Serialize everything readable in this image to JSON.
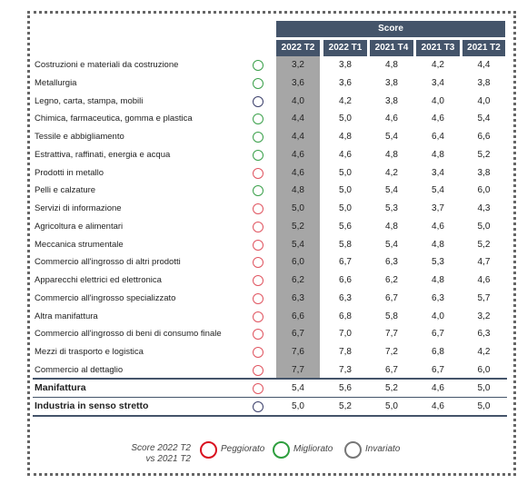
{
  "table": {
    "super_header": "Score",
    "columns": [
      "2022 T2",
      "2022 T1",
      "2021 T4",
      "2021 T3",
      "2021 T2"
    ],
    "rows": [
      {
        "label": "Costruzioni e materiali da costruzione",
        "status": "Migliorato",
        "cells": [
          "3,2",
          "3,8",
          "4,8",
          "4,2",
          "4,4"
        ]
      },
      {
        "label": "Metallurgia",
        "status": "Migliorato",
        "cells": [
          "3,6",
          "3,6",
          "3,8",
          "3,4",
          "3,8"
        ]
      },
      {
        "label": "Legno, carta, stampa, mobili",
        "status": "Invariato",
        "cells": [
          "4,0",
          "4,2",
          "3,8",
          "4,0",
          "4,0"
        ]
      },
      {
        "label": "Chimica, farmaceutica, gomma e plastica",
        "status": "Migliorato",
        "cells": [
          "4,4",
          "5,0",
          "4,6",
          "4,6",
          "5,4"
        ]
      },
      {
        "label": "Tessile e abbigliamento",
        "status": "Migliorato",
        "cells": [
          "4,4",
          "4,8",
          "5,4",
          "6,4",
          "6,6"
        ]
      },
      {
        "label": "Estrattiva, raffinati, energia e acqua",
        "status": "Migliorato",
        "cells": [
          "4,6",
          "4,6",
          "4,8",
          "4,8",
          "5,2"
        ]
      },
      {
        "label": "Prodotti in metallo",
        "status": "Peggiorato",
        "cells": [
          "4,6",
          "5,0",
          "4,2",
          "3,4",
          "3,8"
        ]
      },
      {
        "label": "Pelli e calzature",
        "status": "Migliorato",
        "cells": [
          "4,8",
          "5,0",
          "5,4",
          "5,4",
          "6,0"
        ]
      },
      {
        "label": "Servizi di informazione",
        "status": "Peggiorato",
        "cells": [
          "5,0",
          "5,0",
          "5,3",
          "3,7",
          "4,3"
        ]
      },
      {
        "label": "Agricoltura e alimentari",
        "status": "Peggiorato",
        "cells": [
          "5,2",
          "5,6",
          "4,8",
          "4,6",
          "5,0"
        ]
      },
      {
        "label": "Meccanica strumentale",
        "status": "Peggiorato",
        "cells": [
          "5,4",
          "5,8",
          "5,4",
          "4,8",
          "5,2"
        ]
      },
      {
        "label": "Commercio all'ingrosso di altri prodotti",
        "status": "Peggiorato",
        "cells": [
          "6,0",
          "6,7",
          "6,3",
          "5,3",
          "4,7"
        ]
      },
      {
        "label": "Apparecchi elettrici ed elettronica",
        "status": "Peggiorato",
        "cells": [
          "6,2",
          "6,6",
          "6,2",
          "4,8",
          "4,6"
        ]
      },
      {
        "label": "Commercio all'ingrosso specializzato",
        "status": "Peggiorato",
        "cells": [
          "6,3",
          "6,3",
          "6,7",
          "6,3",
          "5,7"
        ]
      },
      {
        "label": "Altra manifattura",
        "status": "Peggiorato",
        "cells": [
          "6,6",
          "6,8",
          "5,8",
          "4,0",
          "3,2"
        ]
      },
      {
        "label": "Commercio all'ingrosso di beni di consumo finale",
        "status": "Peggiorato",
        "cells": [
          "6,7",
          "7,0",
          "7,7",
          "6,7",
          "6,3"
        ]
      },
      {
        "label": "Mezzi di trasporto e logistica",
        "status": "Peggiorato",
        "cells": [
          "7,6",
          "7,8",
          "7,2",
          "6,8",
          "4,2"
        ]
      },
      {
        "label": "Commercio al dettaglio",
        "status": "Peggiorato",
        "cells": [
          "7,7",
          "7,3",
          "6,7",
          "6,7",
          "6,0"
        ]
      }
    ],
    "summary_rows": [
      {
        "label": "Manifattura",
        "status": "Peggiorato",
        "cells": [
          "5,4",
          "5,6",
          "5,2",
          "4,6",
          "5,0"
        ]
      },
      {
        "label": "Industria in senso stretto",
        "status": "Invariato",
        "cells": [
          "5,0",
          "5,2",
          "5,0",
          "4,6",
          "5,0"
        ]
      }
    ]
  },
  "legend": {
    "title_line1": "Score 2022 T2",
    "title_line2": "vs 2021 T2",
    "items": [
      {
        "label": "Peggiorato",
        "color": "#d9101f"
      },
      {
        "label": "Migliorato",
        "color": "#2e9e3e"
      },
      {
        "label": "Invariato",
        "color": "#777777"
      }
    ]
  },
  "row_status_colors": {
    "Peggiorato": "#e05560",
    "Migliorato": "#3aa04a",
    "Invariato": "#3b3f6b"
  }
}
